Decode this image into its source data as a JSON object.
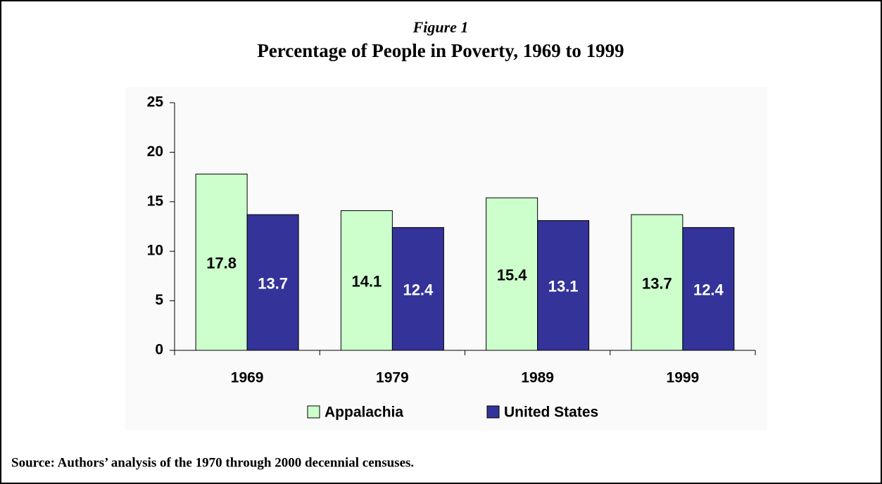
{
  "chart_data": {
    "type": "bar",
    "figure_label": "Figure 1",
    "title": "Percentage of People in Poverty, 1969 to 1999",
    "categories": [
      "1969",
      "1979",
      "1989",
      "1999"
    ],
    "series": [
      {
        "name": "Appalachia",
        "color": "#ccffcc",
        "values": [
          17.8,
          14.1,
          15.4,
          13.7
        ]
      },
      {
        "name": "United States",
        "color": "#333399",
        "values": [
          13.7,
          12.4,
          13.1,
          12.4
        ]
      }
    ],
    "ylim": [
      0,
      25
    ],
    "yticks": [
      0,
      5,
      10,
      15,
      20,
      25
    ],
    "grid": false,
    "legend": "bottom",
    "source": "Source: Authors’ analysis of the 1970 through 2000 decennial censuses."
  }
}
